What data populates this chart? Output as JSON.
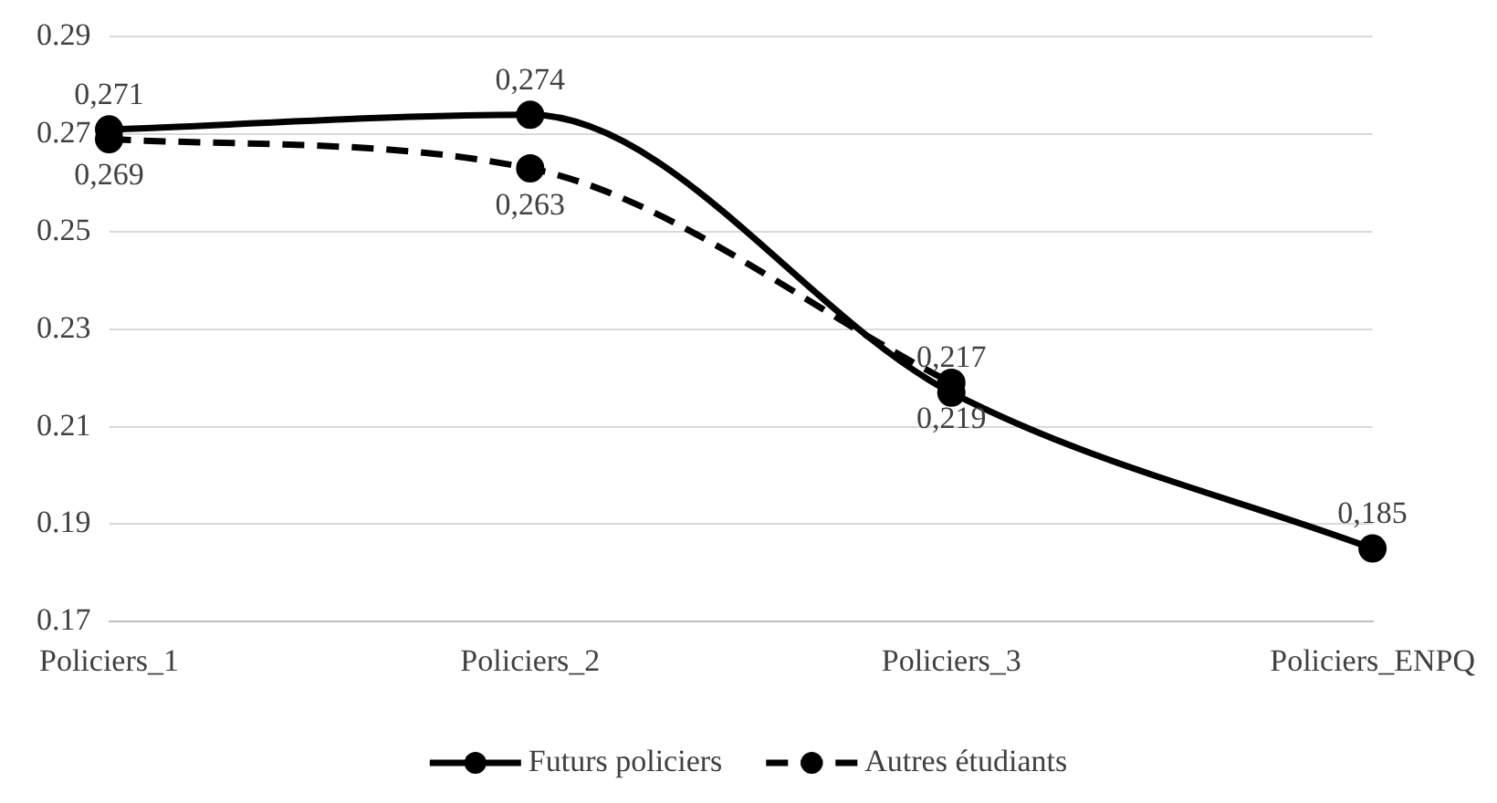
{
  "chart_data": {
    "type": "line",
    "categories": [
      "Policiers_1",
      "Policiers_2",
      "Policiers_3",
      "Policiers_ENPQ"
    ],
    "series": [
      {
        "name": "Futurs policiers",
        "color": "#000000",
        "values": [
          0.271,
          0.274,
          0.217,
          0.185
        ],
        "value_labels": [
          "0,271",
          "0,274",
          "0,217",
          "0,185"
        ],
        "line_style": "solid"
      },
      {
        "name": "Autres étudiants",
        "color": "#000000",
        "values": [
          0.269,
          0.263,
          0.219,
          null
        ],
        "value_labels": [
          "0,269",
          "0,263",
          "0,219",
          null
        ],
        "line_style": "dashed"
      }
    ],
    "ylim": [
      0.17,
      0.29
    ],
    "yticks": [
      0.17,
      0.19,
      0.21,
      0.23,
      0.25,
      0.27,
      0.29
    ],
    "grid": "y",
    "legend": "bottom",
    "marker": "circle"
  }
}
